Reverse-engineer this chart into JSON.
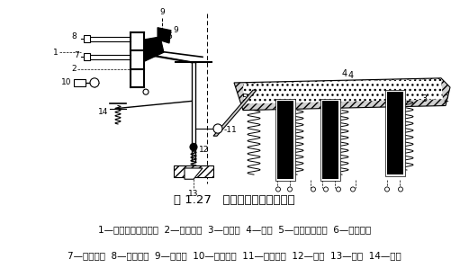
{
  "title": "图 1.27   热继电器的结构原理图",
  "caption_line1": "1—双金属片固定支点  2—双金属片  3—热元件  4—导板  5—补偿双金属片  6—常闭触点",
  "caption_line2": "7—常开触点  8—复位螺钉  9—动触点  10—复位按钮  11—调节旋钮  12—支撑  13—压簧  14—推杆",
  "bg_color": "#ffffff",
  "text_color": "#000000",
  "title_fontsize": 9.5,
  "caption_fontsize": 7.5,
  "fig_width": 5.21,
  "fig_height": 2.98,
  "dpi": 100
}
